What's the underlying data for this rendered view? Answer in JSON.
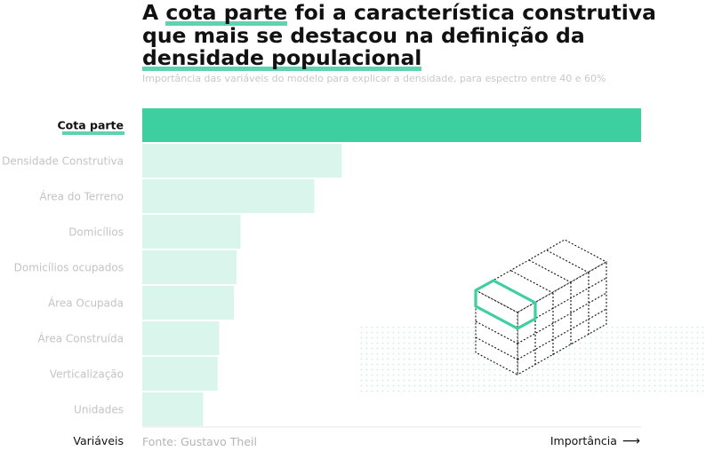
{
  "title": {
    "part1": "A ",
    "highlight1": "cota parte",
    "part2": " foi a característica construtiva que mais se destacou na definição da ",
    "highlight2": "densidade populacional"
  },
  "subtitle": "Importância das variáveis do modelo para explicar a densidade, para espectro entre 40 e 60%",
  "source": "Fonte: Gustavo Theil",
  "y_axis_label": "Variáveis",
  "x_axis_label": "Importância",
  "arrow_icon": "arrow-right-icon",
  "colors": {
    "highlight_bar": "#3ecfa0",
    "muted_bar": "#d9f5ec",
    "title_highlight": "#5fd3b0",
    "muted_label": "#c4c4c4",
    "dots": "#c6ece0"
  },
  "chart_data": {
    "type": "bar",
    "orientation": "horizontal",
    "categories": [
      "Cota parte",
      "Densidade Construtiva",
      "Área do Terreno",
      "Domicílios",
      "Domicílios ocupados",
      "Área Ocupada",
      "Área Construída",
      "Verticalização",
      "Unidades"
    ],
    "values": [
      100,
      40,
      34.5,
      19.7,
      18.9,
      18.4,
      15.4,
      15.1,
      12.2
    ],
    "highlighted": "Cota parte",
    "xlim": [
      0,
      100
    ],
    "grid": false,
    "legend": "none",
    "xlabel": "Importância",
    "ylabel": "Variáveis"
  }
}
